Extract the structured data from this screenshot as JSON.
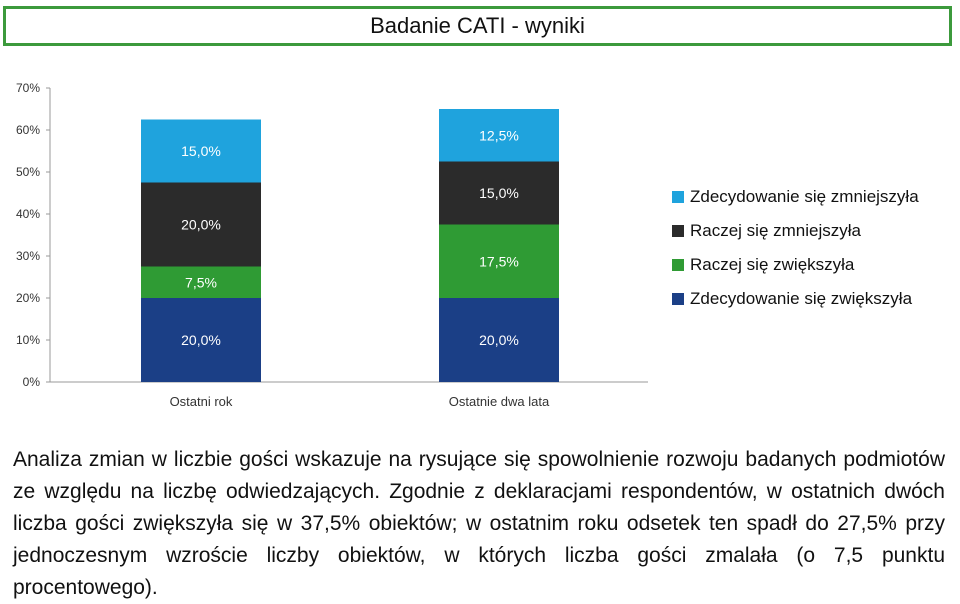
{
  "title": "Badanie CATI - wyniki",
  "chart_data": {
    "type": "bar",
    "stacked": true,
    "categories": [
      "Ostatni rok",
      "Ostatnie dwa lata"
    ],
    "series": [
      {
        "name": "Zdecydowanie się zwiększyła",
        "values": [
          20.0,
          20.0
        ],
        "labels": [
          "20,0%",
          "20,0%"
        ],
        "color": "#1b3f86"
      },
      {
        "name": "Raczej się zwiększyła",
        "values": [
          7.5,
          17.5
        ],
        "labels": [
          "7,5%",
          "17,5%"
        ],
        "color": "#2f9b34"
      },
      {
        "name": "Raczej się zmniejszyła",
        "values": [
          20.0,
          15.0
        ],
        "labels": [
          "20,0%",
          "15,0%"
        ],
        "color": "#2b2b2b"
      },
      {
        "name": "Zdecydowanie się zmniejszyła",
        "values": [
          15.0,
          12.5
        ],
        "labels": [
          "15,0%",
          "12,5%"
        ],
        "color": "#1fa3dd"
      }
    ],
    "ylim": [
      0,
      70
    ],
    "yticks": [
      "0%",
      "10%",
      "20%",
      "30%",
      "40%",
      "50%",
      "60%",
      "70%"
    ],
    "legend_position": "right",
    "grid": false
  },
  "legend": {
    "items": [
      {
        "label": "Zdecydowanie się zmniejszyła",
        "color": "#1fa3dd"
      },
      {
        "label": "Raczej się zmniejszyła",
        "color": "#2b2b2b"
      },
      {
        "label": "Raczej się zwiększyła",
        "color": "#2f9b34"
      },
      {
        "label": "Zdecydowanie się zwiększyła",
        "color": "#1b3f86"
      }
    ]
  },
  "paragraph": "Analiza zmian w liczbie gości wskazuje na rysujące się spowolnienie rozwoju badanych podmiotów ze względu na liczbę odwiedzających. Zgodnie z deklaracjami respondentów, w ostatnich dwóch liczba gości zwiększyła się w 37,5% obiektów; w ostatnim roku odsetek ten spadł do 27,5% przy jednoczesnym wzroście liczby obiektów, w których liczba gości zmalała (o 7,5 punktu procentowego)."
}
